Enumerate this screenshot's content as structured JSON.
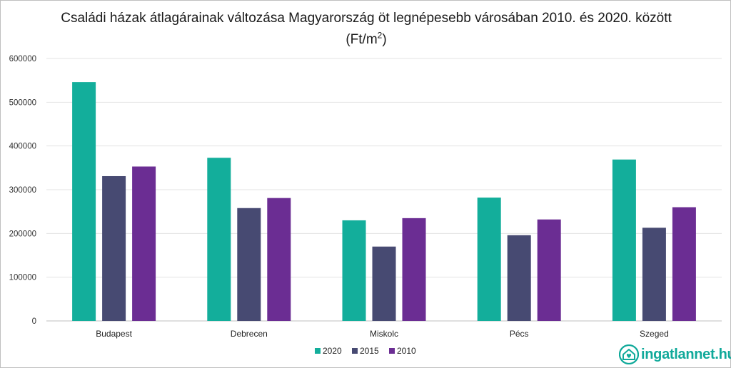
{
  "title_main": "Családi házak átlagárainak változása Magyarország öt legnépesebb városában 2010. és 2020. között (Ft/m",
  "title_sup": "2",
  "title_end": ")",
  "logo_text": "ingatlannet.hu",
  "chart_data": {
    "type": "bar",
    "categories": [
      "Budapest",
      "Debrecen",
      "Miskolc",
      "Pécs",
      "Szeged"
    ],
    "series": [
      {
        "name": "2020",
        "color": "#13ae9b",
        "values": [
          546000,
          373000,
          230000,
          282000,
          369000
        ]
      },
      {
        "name": "2015",
        "color": "#474a72",
        "values": [
          331000,
          258000,
          170000,
          196000,
          213000
        ]
      },
      {
        "name": "2010",
        "color": "#6b2d93",
        "values": [
          353000,
          281000,
          235000,
          232000,
          260000
        ]
      }
    ],
    "ylim": [
      0,
      600000
    ],
    "yticks": [
      0,
      100000,
      200000,
      300000,
      400000,
      500000,
      600000
    ],
    "ytick_labels": [
      "0",
      "100000",
      "200000",
      "300000",
      "400000",
      "500000",
      "600000"
    ],
    "grid": true,
    "legend": "bottom-center",
    "xlabel": "",
    "ylabel": ""
  }
}
